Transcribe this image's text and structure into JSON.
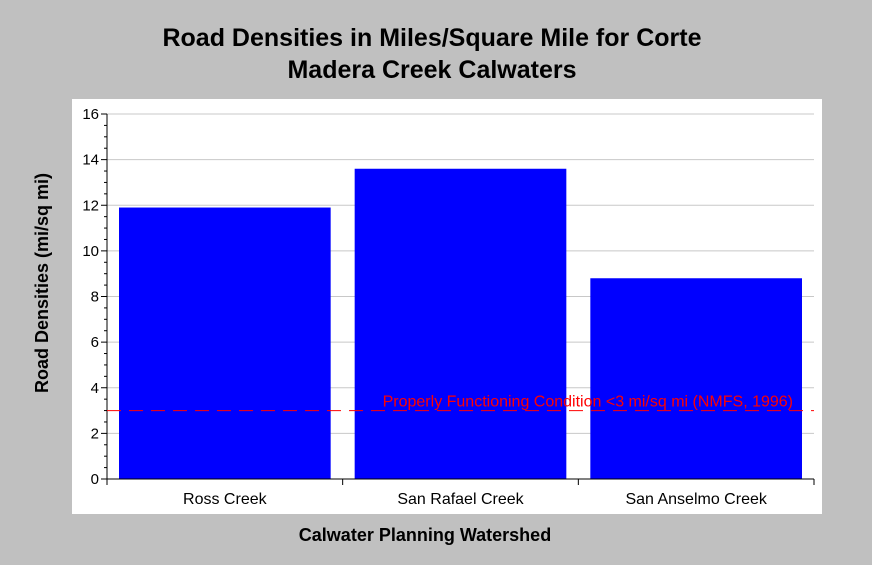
{
  "chart_data": {
    "type": "bar",
    "title_lines": [
      "Road Densities in Miles/Square Mile for Corte",
      "Madera Creek Calwaters"
    ],
    "xlabel": "Calwater Planning Watershed",
    "ylabel": "Road Densities (mi/sq mi)",
    "categories": [
      "Ross Creek",
      "San Rafael Creek",
      "San Anselmo Creek"
    ],
    "values": [
      11.9,
      13.6,
      8.8
    ],
    "ylim": [
      0,
      16
    ],
    "yticks": [
      0,
      2,
      4,
      6,
      8,
      10,
      12,
      14,
      16
    ],
    "grid": true,
    "bar_color": "#0000ff",
    "reference_line": {
      "value": 3,
      "label": "Properly Functioning Condition <3 mi/sq mi (NMFS, 1996)",
      "color": "#ff0000",
      "style": "dashed"
    }
  }
}
